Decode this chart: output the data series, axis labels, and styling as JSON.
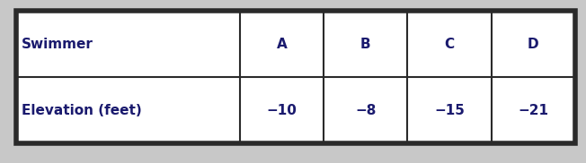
{
  "row1_label": "Swimmer",
  "row2_label": "Elevation (feet)",
  "swimmers": [
    "A",
    "B",
    "C",
    "D"
  ],
  "elevations": [
    "−10",
    "−8",
    "−15",
    "−21"
  ],
  "bg_color": "#c8c8c8",
  "table_bg": "#ffffff",
  "border_color": "#2a2a2a",
  "text_color": "#1a1a6e",
  "header_fontsize": 11,
  "cell_fontsize": 11,
  "fig_width": 6.52,
  "fig_height": 1.82,
  "dpi": 100
}
